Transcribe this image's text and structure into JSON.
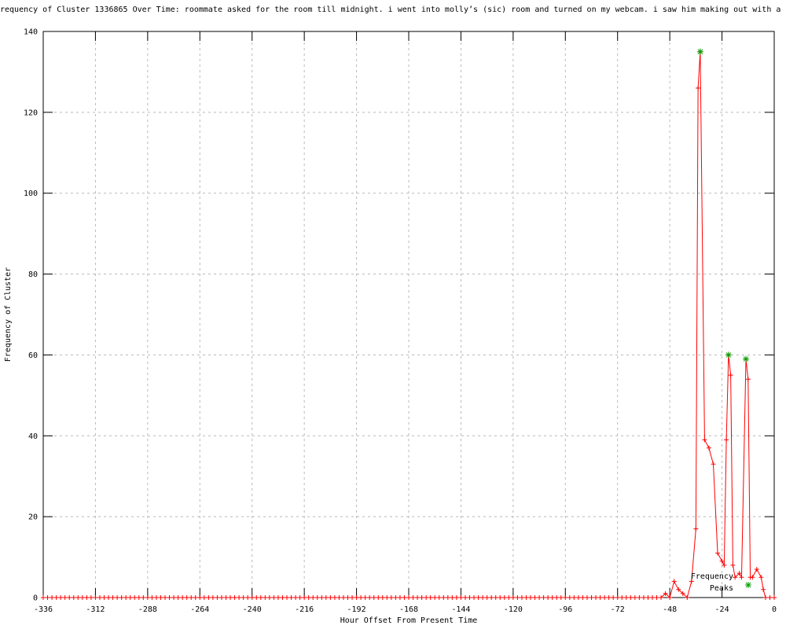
{
  "chart": {
    "type": "line",
    "title": "requency of Cluster 1336865 Over Time: roommate asked for the room till midnight. i went into molly’s (sic) room and turned on my webcam. i saw him making out with a du",
    "xlabel": "Hour Offset From Present Time",
    "ylabel": "Frequency of Cluster",
    "xlim": [
      -336,
      0
    ],
    "ylim": [
      0,
      140
    ],
    "xticks": [
      -336,
      -312,
      -288,
      -264,
      -240,
      -216,
      -192,
      -168,
      -144,
      -120,
      -96,
      -72,
      -48,
      -24,
      0
    ],
    "yticks": [
      0,
      20,
      40,
      60,
      80,
      100,
      120,
      140
    ],
    "grid": true,
    "colors": {
      "line": "#ff0000",
      "peaks": "#00a000",
      "grid": "#b8b8b8",
      "axis": "#000000",
      "background": "#ffffff"
    },
    "legend": {
      "label_lines": [
        "Frequency",
        "Peaks"
      ],
      "position": "inside-bottom-right"
    },
    "chart_data": {
      "note": "main series: hourly-ish cluster frequency; zeros run-length encoded, then explicit [hour, frequency] points",
      "baseline_zeros": {
        "from": -336,
        "to": -54,
        "step": 2,
        "value": 0
      },
      "points": [
        [
          -52,
          0
        ],
        [
          -50,
          1
        ],
        [
          -48,
          0
        ],
        [
          -46,
          4
        ],
        [
          -44,
          2
        ],
        [
          -42,
          1
        ],
        [
          -40,
          0
        ],
        [
          -38,
          4
        ],
        [
          -36,
          17
        ],
        [
          -35,
          126
        ],
        [
          -34,
          135
        ],
        [
          -32,
          39
        ],
        [
          -30,
          37
        ],
        [
          -28,
          33
        ],
        [
          -26,
          11
        ],
        [
          -24,
          9
        ],
        [
          -23,
          8
        ],
        [
          -22,
          39
        ],
        [
          -21,
          60
        ],
        [
          -20,
          55
        ],
        [
          -19,
          8
        ],
        [
          -18,
          5
        ],
        [
          -16,
          6
        ],
        [
          -15,
          5
        ],
        [
          -13,
          59
        ],
        [
          -12,
          54
        ],
        [
          -11,
          5
        ],
        [
          -10,
          5
        ],
        [
          -8,
          7
        ],
        [
          -6,
          5
        ],
        [
          -5,
          2
        ],
        [
          -4,
          0
        ],
        [
          -2,
          0
        ],
        [
          0,
          0
        ]
      ],
      "peak_points": [
        [
          -34,
          135
        ],
        [
          -21,
          60
        ],
        [
          -13,
          59
        ]
      ]
    }
  }
}
